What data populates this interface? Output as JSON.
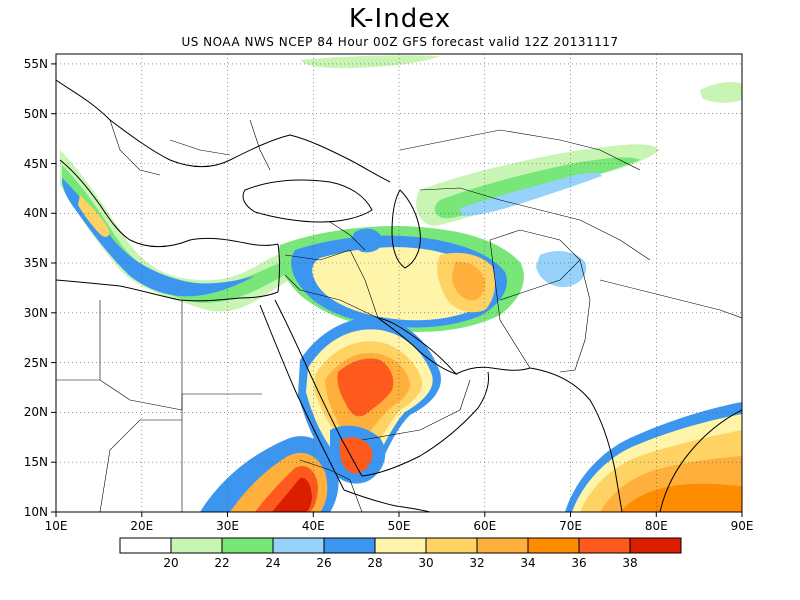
{
  "title": "K-Index",
  "subtitle": "US NOAA NWS NCEP 84 Hour 00Z GFS forecast valid 12Z 20131117",
  "map": {
    "lon_labels": [
      "10E",
      "20E",
      "30E",
      "40E",
      "50E",
      "60E",
      "70E",
      "80E",
      "90E"
    ],
    "lat_labels": [
      "55N",
      "50N",
      "45N",
      "40N",
      "35N",
      "30N",
      "25N",
      "20N",
      "15N",
      "10N"
    ],
    "lon_range": [
      10,
      90
    ],
    "lat_range": [
      10,
      56
    ]
  },
  "legend": {
    "colors": [
      "#ffffff",
      "#c8f5b4",
      "#78e678",
      "#96d2fa",
      "#3c96f0",
      "#fff5aa",
      "#ffd264",
      "#ffaf3c",
      "#ff8c00",
      "#ff5a1e",
      "#dc1e00"
    ],
    "labels": [
      "20",
      "22",
      "24",
      "26",
      "28",
      "30",
      "32",
      "34",
      "36",
      "38"
    ]
  }
}
